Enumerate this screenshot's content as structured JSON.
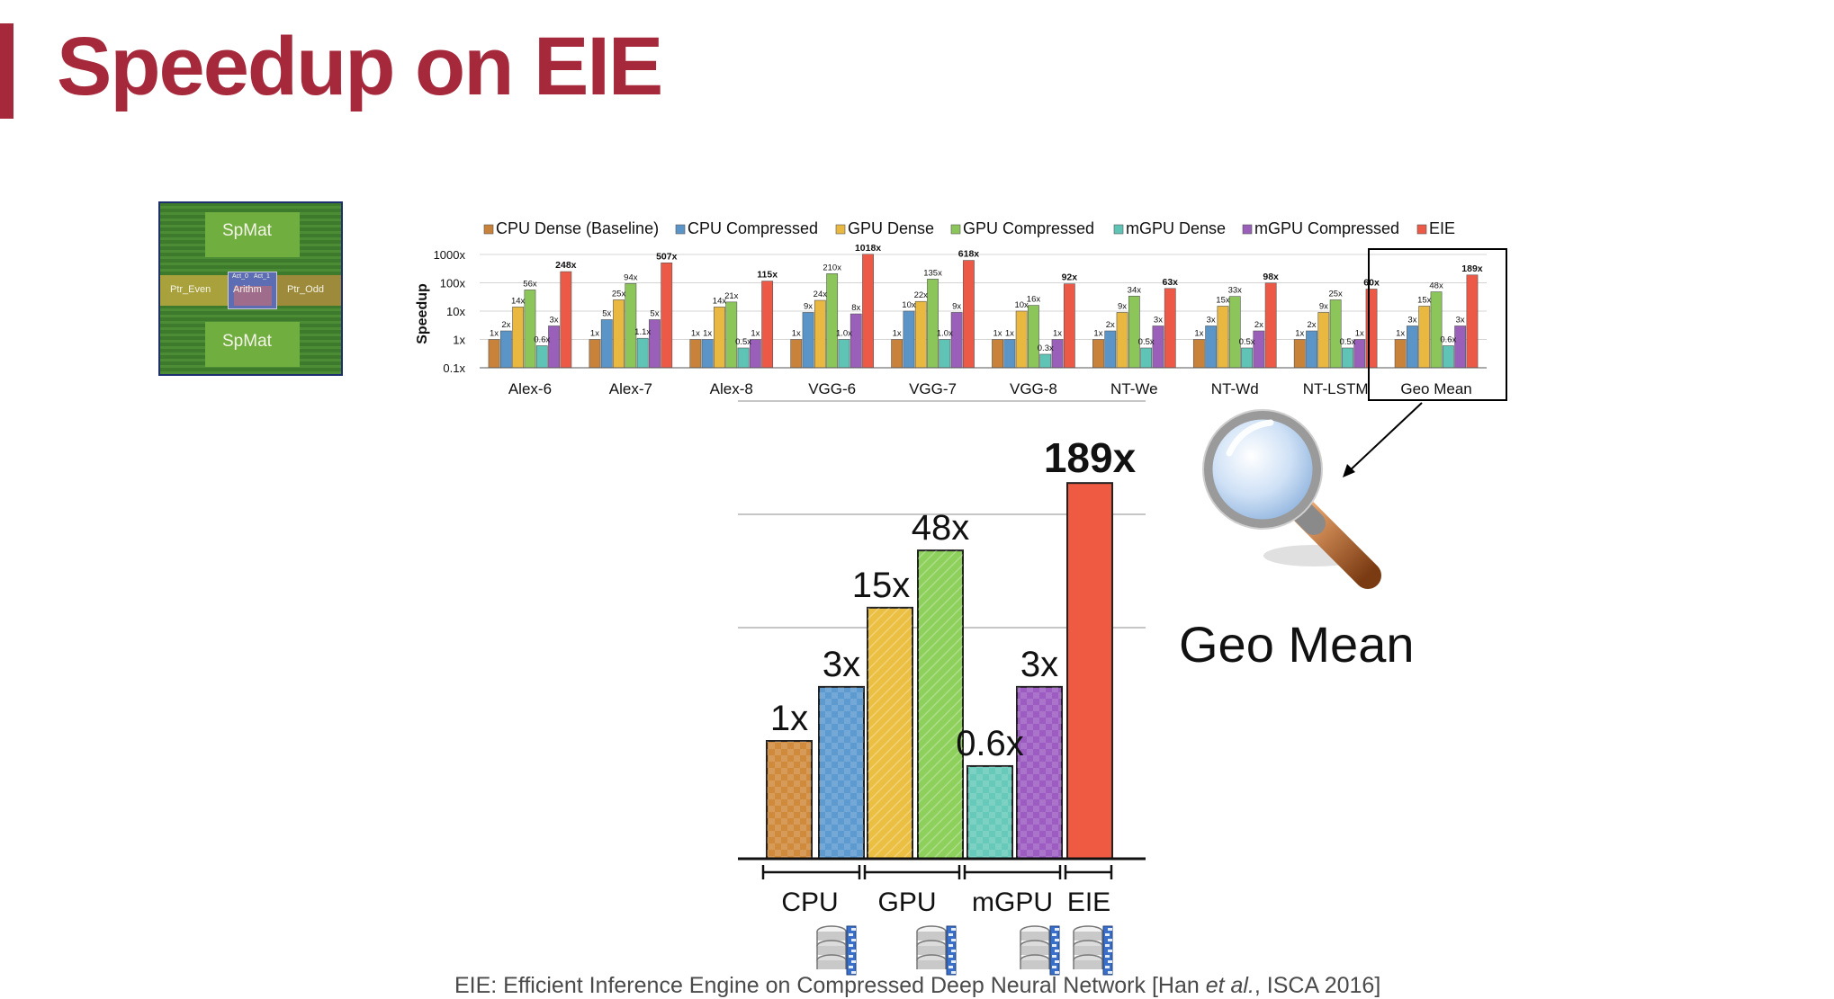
{
  "slide": {
    "title": "Speedup on EIE",
    "footnote_pre": "EIE: Efficient Inference Engine on Compressed Deep Neural Network [Han ",
    "footnote_italic": "et al.",
    "footnote_post": ", ISCA 2016]",
    "accent_color": "#a5283b"
  },
  "chip_image": {
    "labels": [
      "SpMat",
      "SpMat",
      "Ptr_Even",
      "Arithm",
      "Ptr_Odd",
      "Act_0",
      "Act_1"
    ]
  },
  "magnifier": {
    "icon": "magnifying-glass-icon",
    "caption": "Geo Mean"
  },
  "compressed_icons": [
    "compressed-database-icon",
    "compressed-database-icon",
    "compressed-database-icon",
    "compressed-database-icon"
  ],
  "chart_data": [
    {
      "type": "bar",
      "scale": "log",
      "ylabel": "Speedup",
      "xlabel": "",
      "ylim": [
        0.1,
        1000
      ],
      "y_ticks": [
        "0.1x",
        "1x",
        "10x",
        "100x",
        "1000x"
      ],
      "legend_position": "top",
      "highlighted_category": "Geo Mean",
      "categories": [
        "Alex-6",
        "Alex-7",
        "Alex-8",
        "VGG-6",
        "VGG-7",
        "VGG-8",
        "NT-We",
        "NT-Wd",
        "NT-LSTM",
        "Geo Mean"
      ],
      "series": [
        {
          "name": "CPU Dense (Baseline)",
          "color": "#c8823a",
          "values": [
            1,
            1,
            1,
            1,
            1,
            1,
            1,
            1,
            1,
            1
          ],
          "labels": [
            "1x",
            "1x",
            "1x",
            "1x",
            "1x",
            "1x",
            "1x",
            "1x",
            "1x",
            "1x"
          ]
        },
        {
          "name": "CPU Compressed",
          "color": "#5b95c8",
          "values": [
            2,
            5,
            1,
            9,
            10,
            1,
            2,
            3,
            2,
            3
          ],
          "labels": [
            "2x",
            "5x",
            "1x",
            "9x",
            "10x",
            "1x",
            "2x",
            "3x",
            "2x",
            "3x"
          ]
        },
        {
          "name": "GPU Dense",
          "color": "#e8b840",
          "values": [
            14,
            25,
            14,
            24,
            22,
            10,
            9,
            15,
            9,
            15
          ],
          "labels": [
            "14x",
            "25x",
            "14x",
            "24x",
            "22x",
            "10x",
            "9x",
            "15x",
            "9x",
            "15x"
          ]
        },
        {
          "name": "GPU Compressed",
          "color": "#8cc65a",
          "values": [
            56,
            94,
            21,
            210,
            135,
            16,
            34,
            33,
            25,
            48
          ],
          "labels": [
            "56x",
            "94x",
            "21x",
            "210x",
            "135x",
            "16x",
            "34x",
            "33x",
            "25x",
            "48x"
          ]
        },
        {
          "name": "mGPU Dense",
          "color": "#5fc3b6",
          "values": [
            0.6,
            1.1,
            0.5,
            1.0,
            1.0,
            0.3,
            0.5,
            0.5,
            0.5,
            0.6
          ],
          "labels": [
            "0.6x",
            "1.1x",
            "0.5x",
            "1.0x",
            "1.0x",
            "0.3x",
            "0.5x",
            "0.5x",
            "0.5x",
            "0.6x"
          ]
        },
        {
          "name": "mGPU Compressed",
          "color": "#9a5fb8",
          "values": [
            3,
            5,
            1,
            8,
            9,
            1,
            3,
            2,
            1,
            3
          ],
          "labels": [
            "3x",
            "5x",
            "1x",
            "8x",
            "9x",
            "1x",
            "3x",
            "2x",
            "1x",
            "3x"
          ]
        },
        {
          "name": "EIE",
          "color": "#ec5a47",
          "values": [
            248,
            507,
            115,
            1018,
            618,
            92,
            63,
            98,
            60,
            189
          ],
          "labels": [
            "248x",
            "507x",
            "115x",
            "1018x",
            "618x",
            "92x",
            "63x",
            "98x",
            "60x",
            "189x"
          ]
        }
      ]
    },
    {
      "type": "bar",
      "scale": "log",
      "title": "Geo Mean",
      "groups": [
        "CPU",
        "GPU",
        "mGPU",
        "EIE"
      ],
      "categories": [
        "CPU Dense (Baseline)",
        "CPU Compressed",
        "GPU Dense",
        "GPU Compressed",
        "mGPU Dense",
        "mGPU Compressed",
        "EIE"
      ],
      "values": [
        1,
        3,
        15,
        48,
        0.6,
        3,
        189
      ],
      "labels": [
        "1x",
        "3x",
        "15x",
        "48x",
        "0.6x",
        "3x",
        "189x"
      ],
      "colors": [
        "#d08a3c",
        "#5c9ad0",
        "#ebbf42",
        "#8ed05c",
        "#66c9b9",
        "#9c5cc2",
        "#ee5a42"
      ],
      "grid": true
    }
  ]
}
